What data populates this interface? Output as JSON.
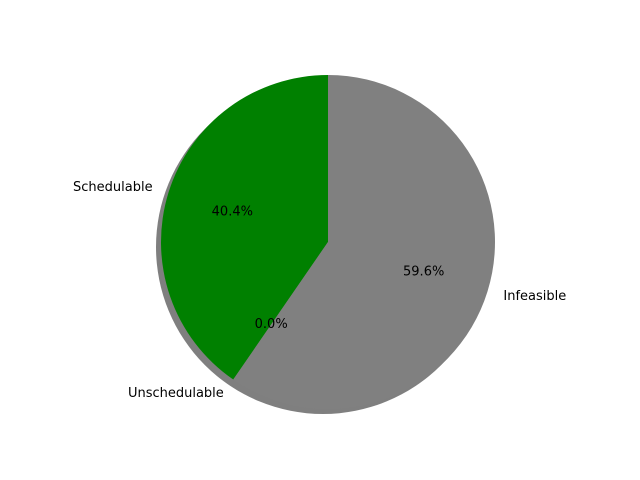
{
  "chart_data": {
    "type": "pie",
    "title": "",
    "shadow": true,
    "start_angle_deg": 90,
    "direction": "counterclockwise",
    "slices": [
      {
        "label": "Schedulable",
        "value": 40.4,
        "percent_label": "40.4%",
        "color": "#008000"
      },
      {
        "label": "Unschedulable",
        "value": 0.0,
        "percent_label": "0.0%",
        "color": "#ff0000"
      },
      {
        "label": "Infeasible",
        "value": 59.6,
        "percent_label": "59.6%",
        "color": "#808080"
      }
    ]
  }
}
